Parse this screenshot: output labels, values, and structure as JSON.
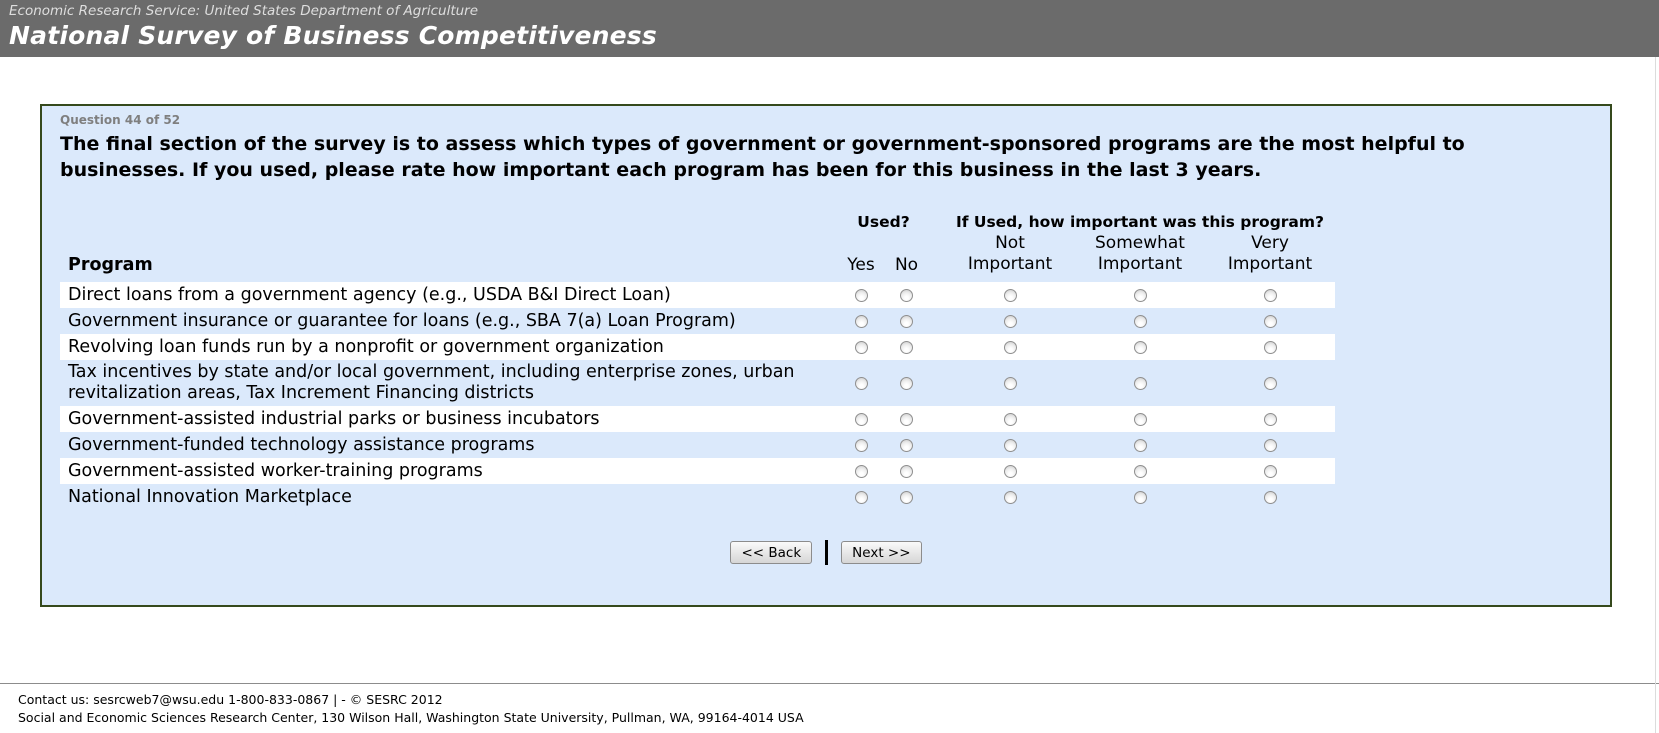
{
  "header": {
    "agency_line": "Economic Research Service: United States Department of Agriculture",
    "title": "National Survey of Business Competitiveness"
  },
  "question": {
    "progress": "Question 44 of 52",
    "text": "The final section of the survey is to assess which types of government or government-sponsored programs are the most helpful to businesses. If you used, please rate how important each program has been for this business in the last 3 years."
  },
  "table": {
    "program_header": "Program",
    "used_header": "Used?",
    "importance_header": "If Used, how important was this program?",
    "yes_label": "Yes",
    "no_label": "No",
    "importance_columns": [
      {
        "line1": "Not",
        "line2": "Important"
      },
      {
        "line1": "Somewhat",
        "line2": "Important"
      },
      {
        "line1": "Very",
        "line2": "Important"
      }
    ],
    "rows": [
      "Direct loans from a government agency (e.g., USDA B&I Direct Loan)",
      "Government insurance or guarantee for loans (e.g., SBA 7(a) Loan Program)",
      "Revolving loan funds run by a nonprofit or government organization",
      "Tax incentives by state and/or local government, including enterprise zones, urban revitalization areas, Tax Increment Financing districts",
      "Government-assisted industrial parks or business incubators",
      "Government-funded technology assistance programs",
      "Government-assisted worker-training programs",
      "National Innovation Marketplace"
    ]
  },
  "buttons": {
    "back_label": "<< Back",
    "next_label": "Next >>"
  },
  "footer": {
    "line1": "Contact us: sesrcweb7@wsu.edu 1-800-833-0867 | - © SESRC 2012",
    "line2": "Social and Economic Sciences Research Center, 130 Wilson Hall, Washington State University, Pullman, WA, 99164-4014 USA"
  },
  "colors": {
    "header_bg": "#6b6b6b",
    "panel_bg": "#dbe9fb",
    "panel_border": "#35491c",
    "row_highlight": "#ffffff"
  }
}
